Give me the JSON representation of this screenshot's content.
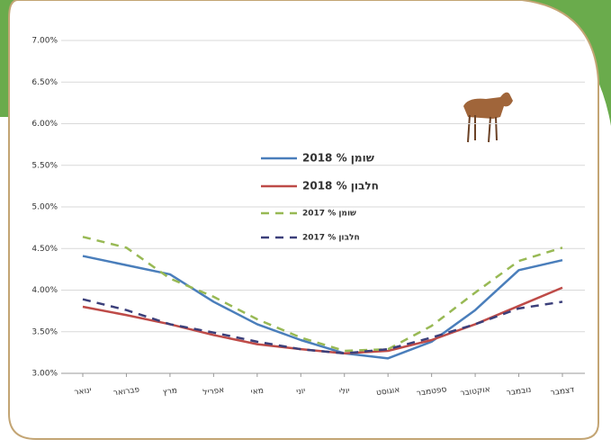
{
  "chart_data": {
    "type": "line",
    "categories": [
      "ינואר",
      "פברואר",
      "מרץ",
      "אפריל",
      "מאי",
      "יוני",
      "יולי",
      "אוגוסט",
      "ספטמבר",
      "אוקטובר",
      "נובמבר",
      "דצמבר"
    ],
    "series": [
      {
        "name": "שומן % 2018",
        "color": "#4a7ebb",
        "dashed": false,
        "values": [
          4.41,
          4.3,
          4.19,
          3.86,
          3.59,
          3.4,
          3.24,
          3.18,
          3.38,
          3.76,
          4.24,
          4.36
        ]
      },
      {
        "name": "חלבון % 2018",
        "color": "#be4b48",
        "dashed": false,
        "values": [
          3.8,
          3.7,
          3.59,
          3.46,
          3.35,
          3.29,
          3.24,
          3.27,
          3.4,
          3.59,
          3.81,
          4.03
        ]
      },
      {
        "name": "שומן % 2017",
        "color": "#98b954",
        "dashed": true,
        "values": [
          4.64,
          4.51,
          4.14,
          3.92,
          3.65,
          3.43,
          3.27,
          3.29,
          3.57,
          3.97,
          4.35,
          4.51
        ]
      },
      {
        "name": "חלבון % 2017",
        "color": "#3b3f7a",
        "dashed": true,
        "values": [
          3.89,
          3.76,
          3.59,
          3.49,
          3.38,
          3.29,
          3.24,
          3.29,
          3.43,
          3.59,
          3.78,
          3.86
        ]
      }
    ],
    "ylim": [
      3,
      7
    ],
    "yticks": [
      {
        "value": 3,
        "label": "3.00%"
      },
      {
        "value": 3.5,
        "label": "3.50%"
      },
      {
        "value": 4,
        "label": "4.00%"
      },
      {
        "value": 4.5,
        "label": "4.50%"
      },
      {
        "value": 5,
        "label": "5.00%"
      },
      {
        "value": 5.5,
        "label": "5.50%"
      },
      {
        "value": 6,
        "label": "6.00%"
      },
      {
        "value": 6.5,
        "label": "6.50%"
      },
      {
        "value": 7,
        "label": "7.00%"
      }
    ],
    "grid": true
  }
}
